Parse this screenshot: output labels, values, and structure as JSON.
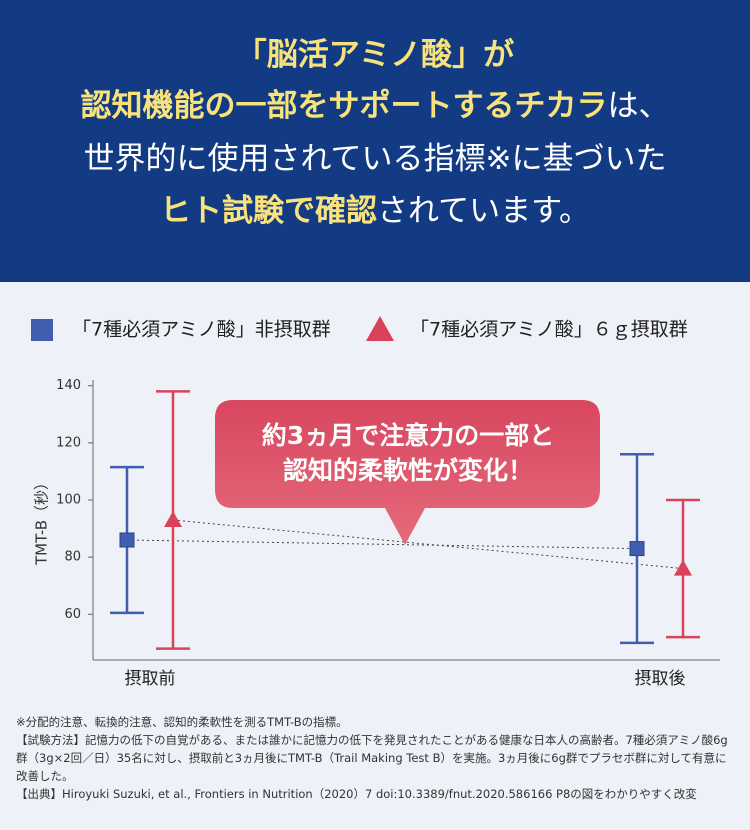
{
  "header": {
    "lines": [
      [
        {
          "text": "「脳活アミノ酸」が",
          "color": "#f8e27c",
          "weight": "bold"
        }
      ],
      [
        {
          "text": "認知機能の一部をサポートするチカラ",
          "color": "#f8e27c",
          "weight": "bold"
        },
        {
          "text": "は、",
          "color": "#ffffff",
          "weight": "normal"
        }
      ],
      [
        {
          "text": "世界的に使用されている指標※に基づいた",
          "color": "#ffffff",
          "weight": "normal"
        }
      ],
      [
        {
          "text": "ヒト試験で確認",
          "color": "#f8e27c",
          "weight": "bold"
        },
        {
          "text": "されています。",
          "color": "#ffffff",
          "weight": "normal"
        }
      ]
    ]
  },
  "chart_data": {
    "type": "errorbar",
    "categories": [
      "摂取前",
      "摂取後"
    ],
    "ylabel": "TMT-B（秒）",
    "ylim": [
      44,
      142
    ],
    "yticks": [
      60,
      80,
      100,
      120,
      140
    ],
    "series": [
      {
        "name": "「7種必須アミノ酸」非摂取群",
        "color": "#3f5fae",
        "marker": "square",
        "values": [
          86,
          83
        ],
        "errors": [
          25.5,
          33
        ]
      },
      {
        "name": "「7種必須アミノ酸」６ｇ摂取群",
        "color": "#d9435a",
        "marker": "triangle",
        "values": [
          93,
          76
        ],
        "errors": [
          45,
          24
        ]
      }
    ],
    "annotation": [
      "約3ヵ月で注意力の一部と",
      "認知的柔軟性が変化！"
    ],
    "annotation_color": "#d8475f"
  },
  "footnotes": [
    "※分配的注意、転換的注意、認知的柔軟性を測るTMT-Bの指標。",
    "【試験方法】記憶力の低下の自覚がある、または誰かに記憶力の低下を発見されたことがある健康な日本人の高齢者。7種必須アミノ酸6g群（3g×2回／日）35名に対し、摂取前と3ヵ月後にTMT-B（Trail Making Test B）を実施。3ヵ月後に6g群でプラセボ群に対して有意に改善した。",
    "【出典】Hiroyuki Suzuki, et al., Frontiers in Nutrition（2020）7 doi:10.3389/fnut.2020.586166 P8の図をわかりやすく改変"
  ]
}
